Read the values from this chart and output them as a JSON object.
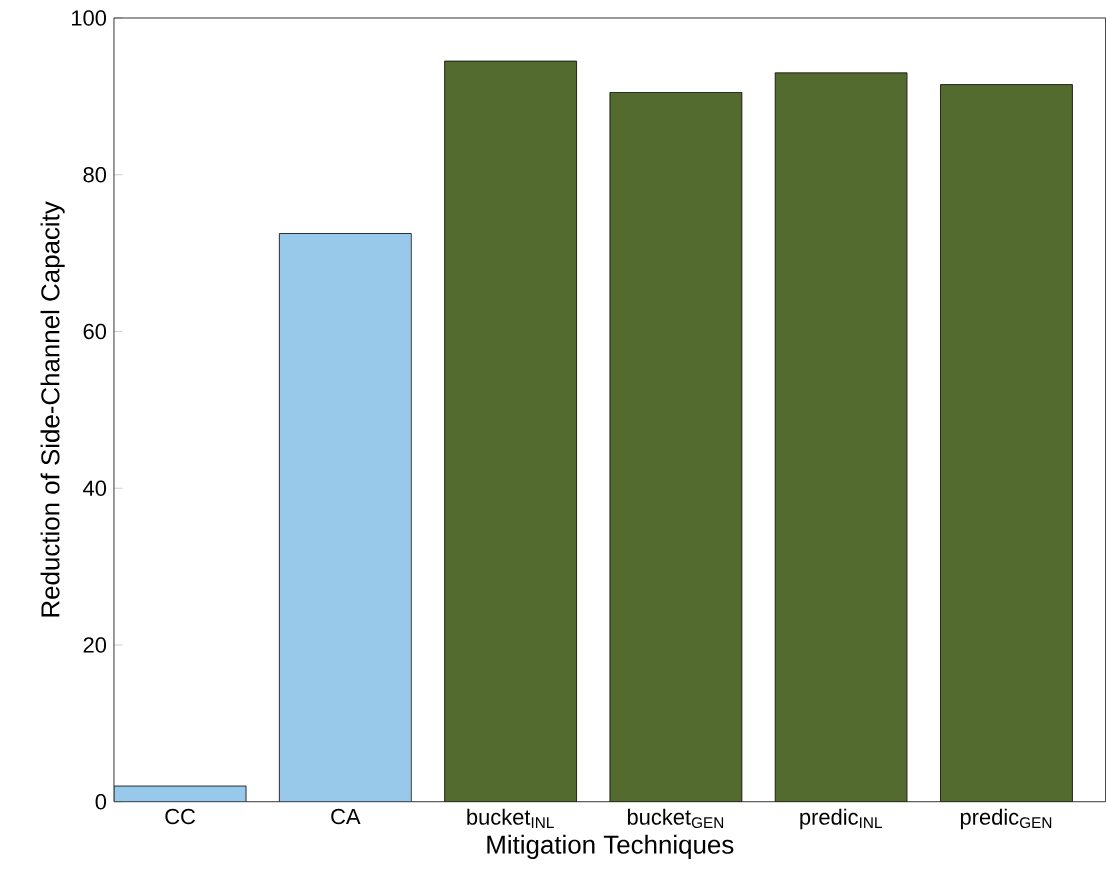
{
  "chart_data": {
    "type": "bar",
    "xlabel": "Mitigation Techniques",
    "ylabel": "Reduction of Side-Channel Capacity",
    "categories": [
      "CC",
      "CA",
      "bucket$_{INL}$",
      "bucket$_{GEN}$",
      "predic$_{INL}$",
      "predic$_{GEN}$"
    ],
    "values": [
      2.0,
      72.5,
      94.5,
      90.5,
      93.0,
      91.5
    ],
    "colors": [
      "#99c9ea",
      "#99c9ea",
      "#536b2e",
      "#536b2e",
      "#536b2e",
      "#536b2e"
    ],
    "ylim": [
      0,
      100
    ],
    "yticks": [
      0,
      20,
      40,
      60,
      80,
      100
    ],
    "grid": false
  }
}
